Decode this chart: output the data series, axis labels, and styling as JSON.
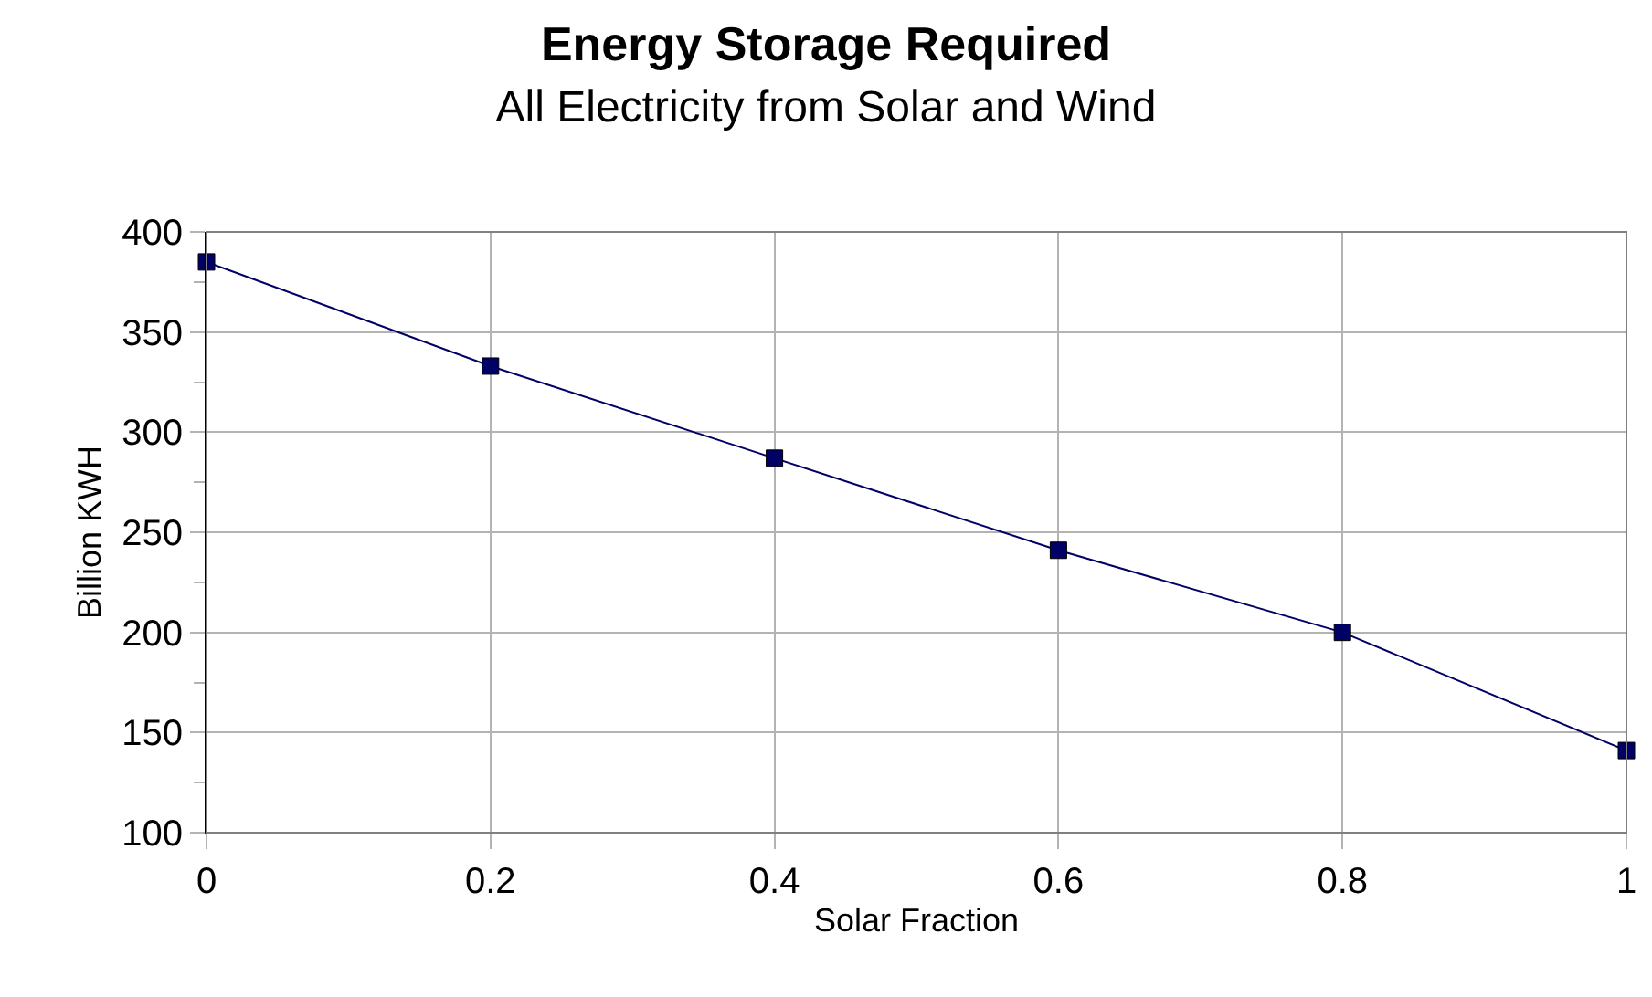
{
  "chart_data": {
    "type": "line",
    "title": "Energy Storage Required",
    "subtitle": "All Electricity from Solar and Wind",
    "xlabel": "Solar Fraction",
    "ylabel": "Billion KWH",
    "x": [
      0,
      0.2,
      0.4,
      0.6,
      0.8,
      1
    ],
    "series": [
      {
        "color": "#000066",
        "values": [
          385,
          333,
          287,
          241,
          200,
          141
        ]
      }
    ],
    "xlim": [
      0,
      1
    ],
    "xticks": [
      0,
      0.2,
      0.4,
      0.6,
      0.8,
      1
    ],
    "ylim": [
      100,
      400
    ],
    "yticks": [
      100,
      {
        "value": 125,
        "label": null
      },
      150,
      {
        "value": 175,
        "label": null
      },
      200,
      {
        "value": 225,
        "label": null
      },
      250,
      {
        "value": 275,
        "label": null
      },
      300,
      {
        "value": 325,
        "label": null
      },
      350,
      {
        "value": 375,
        "label": null
      },
      400
    ],
    "grid": true,
    "marker": "square",
    "line_style": "solid"
  }
}
